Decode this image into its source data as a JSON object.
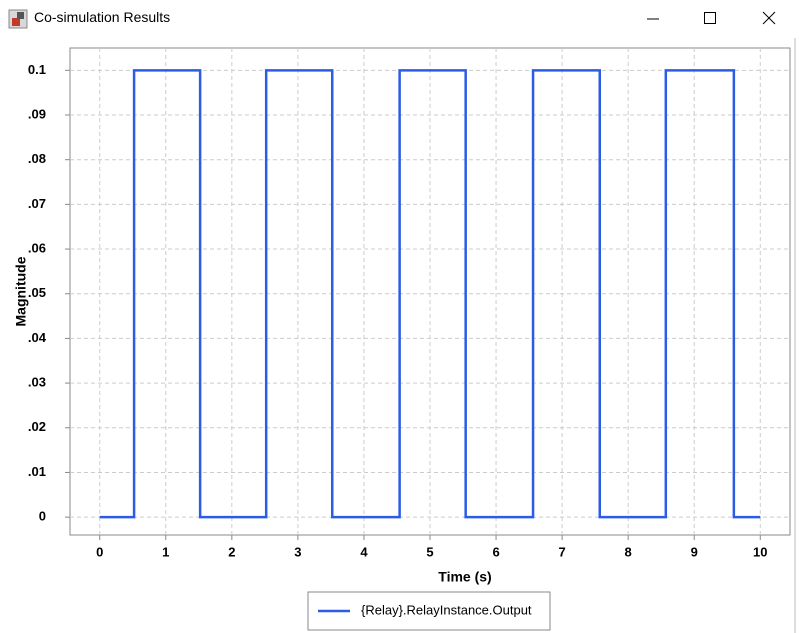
{
  "window": {
    "title": "Co-simulation Results"
  },
  "chart_data": {
    "type": "line",
    "x_label": "Time (s)",
    "y_label": "Magnitude",
    "x": [
      0,
      0.52,
      0.52,
      1.52,
      1.52,
      2.52,
      2.52,
      3.52,
      3.52,
      4.54,
      4.54,
      5.54,
      5.54,
      6.56,
      6.56,
      7.57,
      7.57,
      8.57,
      8.57,
      9.6,
      9.6,
      10
    ],
    "series": [
      {
        "name": "{Relay}.RelayInstance.Output",
        "color": "#2b5ce6",
        "values": [
          0,
          0,
          0.1,
          0.1,
          0,
          0,
          0.1,
          0.1,
          0,
          0,
          0.1,
          0.1,
          0,
          0,
          0.1,
          0.1,
          0,
          0,
          0.1,
          0.1,
          0,
          0
        ]
      }
    ],
    "xlim": [
      -0.45,
      10.45
    ],
    "ylim": [
      -0.004,
      0.105
    ],
    "xticks": [
      0,
      1,
      2,
      3,
      4,
      5,
      6,
      7,
      8,
      9,
      10
    ],
    "yticks": [
      0,
      {
        "value": 0.01,
        "label": ".01"
      },
      {
        "value": 0.02,
        "label": ".02"
      },
      {
        "value": 0.03,
        "label": ".03"
      },
      {
        "value": 0.04,
        "label": ".04"
      },
      {
        "value": 0.05,
        "label": ".05"
      },
      {
        "value": 0.06,
        "label": ".06"
      },
      {
        "value": 0.07,
        "label": ".07"
      },
      {
        "value": 0.08,
        "label": ".08"
      },
      {
        "value": 0.09,
        "label": ".09"
      },
      0.1
    ],
    "grid": true,
    "legend": "bottom"
  }
}
